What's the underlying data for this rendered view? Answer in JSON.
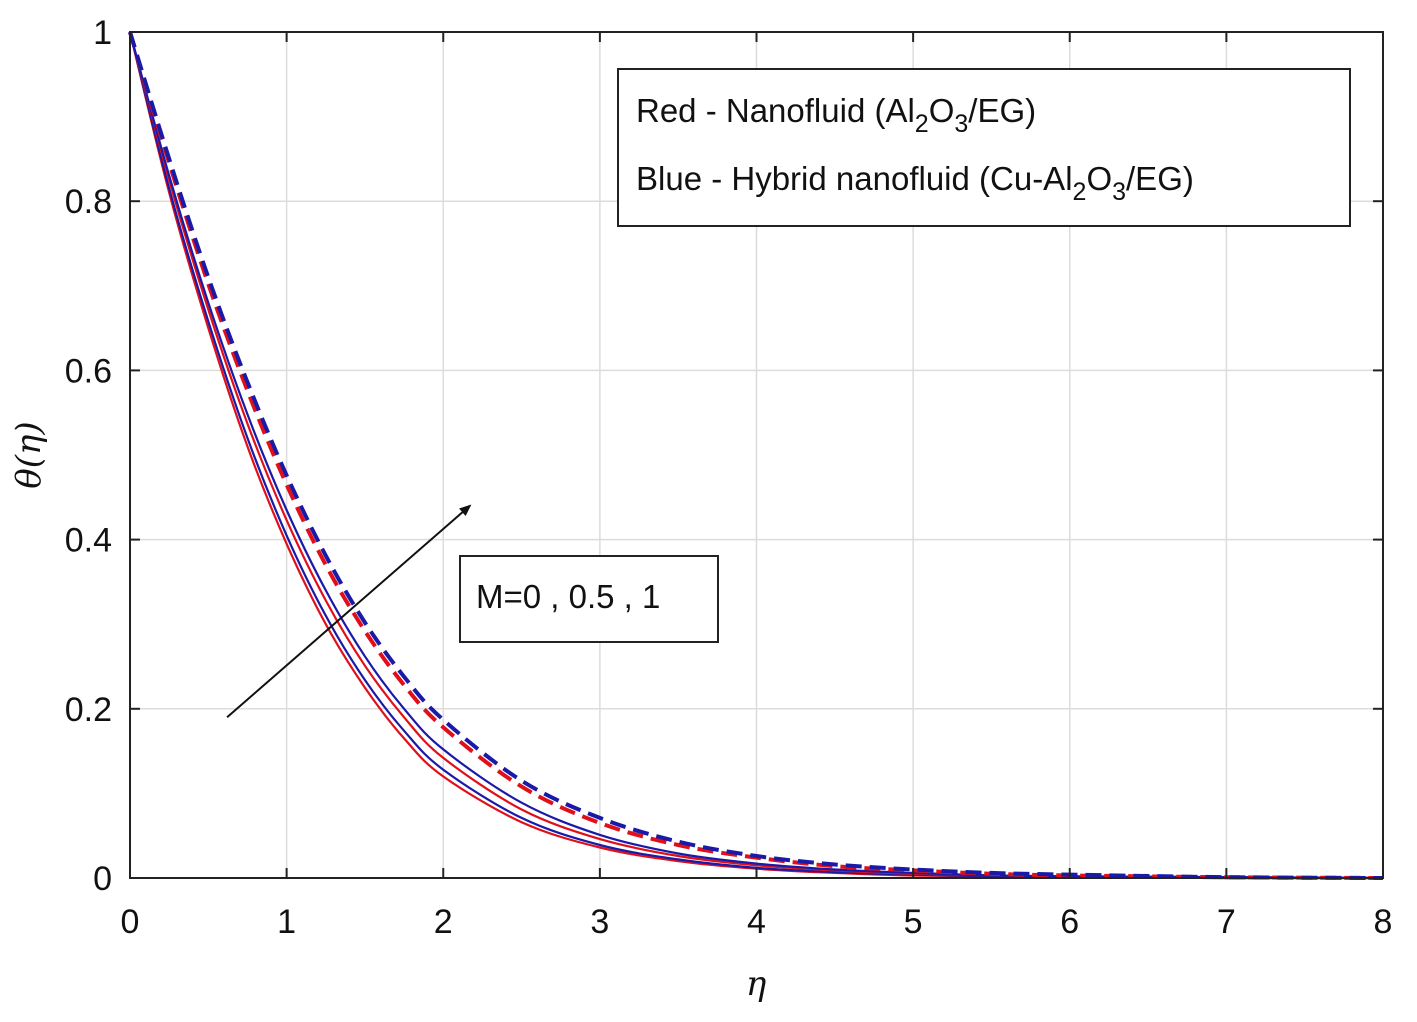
{
  "chart_data": {
    "type": "line",
    "xlabel": "η",
    "ylabel": "θ(η)",
    "xlim": [
      0,
      8
    ],
    "ylim": [
      0,
      1
    ],
    "xticks": [
      "0",
      "1",
      "2",
      "3",
      "4",
      "5",
      "6",
      "7",
      "8"
    ],
    "yticks": [
      "0",
      "0.2",
      "0.4",
      "0.6",
      "0.8",
      "1"
    ],
    "grid": true,
    "colors": {
      "red": "#e0101a",
      "blue": "#1a1aa8"
    },
    "legend": {
      "placement": "top-right",
      "line1": {
        "pre": "Red - Nanofluid (Al",
        "sub1": "2",
        "mid": "O",
        "sub2": "3",
        "post": "/EG)"
      },
      "line2": {
        "pre": "Blue - Hybrid nanofluid (Cu-Al",
        "sub1": "2",
        "mid": "O",
        "sub2": "3",
        "post": "/EG)"
      }
    },
    "annotation": {
      "text": "M=0 , 0.5 , 1",
      "arrow_from": [
        0.62,
        0.19
      ],
      "arrow_to": [
        2.17,
        0.44
      ]
    },
    "x": [
      0,
      0.25,
      0.5,
      0.75,
      1,
      1.25,
      1.5,
      1.75,
      2,
      2.5,
      3,
      3.5,
      4,
      4.5,
      5,
      5.5,
      6,
      7,
      8
    ],
    "series": [
      {
        "color": "red",
        "style": "solid",
        "values": [
          1,
          0.81,
          0.65,
          0.51,
          0.395,
          0.3,
          0.225,
          0.165,
          0.12,
          0.066,
          0.036,
          0.02,
          0.011,
          0.006,
          0.003,
          0.002,
          0.001,
          0,
          0
        ]
      },
      {
        "color": "blue",
        "style": "solid",
        "values": [
          1,
          0.815,
          0.658,
          0.52,
          0.405,
          0.31,
          0.234,
          0.174,
          0.128,
          0.071,
          0.039,
          0.022,
          0.012,
          0.007,
          0.004,
          0.002,
          0.001,
          0,
          0
        ]
      },
      {
        "color": "red",
        "style": "solid",
        "values": [
          1,
          0.825,
          0.672,
          0.537,
          0.423,
          0.328,
          0.251,
          0.19,
          0.142,
          0.081,
          0.046,
          0.026,
          0.015,
          0.009,
          0.005,
          0.003,
          0.002,
          0.001,
          0
        ]
      },
      {
        "color": "blue",
        "style": "solid",
        "values": [
          1,
          0.83,
          0.68,
          0.548,
          0.435,
          0.34,
          0.262,
          0.2,
          0.152,
          0.089,
          0.051,
          0.029,
          0.017,
          0.01,
          0.006,
          0.003,
          0.002,
          0.001,
          0
        ]
      },
      {
        "color": "red",
        "style": "dashed",
        "values": [
          1,
          0.845,
          0.702,
          0.576,
          0.465,
          0.37,
          0.292,
          0.228,
          0.178,
          0.108,
          0.065,
          0.039,
          0.024,
          0.014,
          0.009,
          0.005,
          0.003,
          0.001,
          0
        ]
      },
      {
        "color": "blue",
        "style": "dashed",
        "values": [
          1,
          0.85,
          0.71,
          0.586,
          0.476,
          0.381,
          0.302,
          0.238,
          0.187,
          0.115,
          0.071,
          0.043,
          0.026,
          0.016,
          0.01,
          0.006,
          0.004,
          0.001,
          0
        ]
      }
    ]
  }
}
